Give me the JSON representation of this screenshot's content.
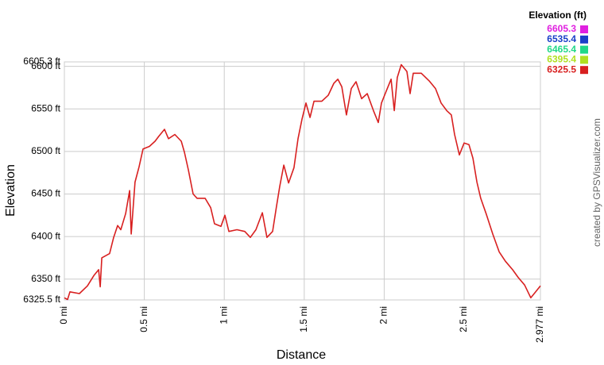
{
  "chart_data": {
    "type": "line",
    "legend_title": "Elevation (ft)",
    "y_label": "Elevation",
    "x_label": "Distance",
    "credit": "created by GPSVisualizer.com",
    "grid": true,
    "xlim": [
      0,
      2.977
    ],
    "xticks": [
      {
        "value": 0,
        "label": "0 mi"
      },
      {
        "value": 0.5,
        "label": "0.5 mi"
      },
      {
        "value": 1,
        "label": "1 mi"
      },
      {
        "value": 1.5,
        "label": "1.5 mi"
      },
      {
        "value": 2,
        "label": "2 mi"
      },
      {
        "value": 2.5,
        "label": "2.5 mi"
      },
      {
        "value": 2.977,
        "label": "2.977 mi"
      }
    ],
    "ylim": [
      6325.5,
      6605.3
    ],
    "yticks": [
      {
        "value": 6325.5,
        "label": "6325.5 ft"
      },
      {
        "value": 6350,
        "label": "6350 ft"
      },
      {
        "value": 6400,
        "label": "6400 ft"
      },
      {
        "value": 6450,
        "label": "6450 ft"
      },
      {
        "value": 6500,
        "label": "6500 ft"
      },
      {
        "value": 6550,
        "label": "6550 ft"
      },
      {
        "value": 6600,
        "label": "6600 ft"
      },
      {
        "value": 6605.3,
        "label": "6605.3 ft"
      }
    ],
    "color_scale": [
      {
        "value": 6605.3,
        "color": "#e020e0"
      },
      {
        "value": 6535.4,
        "color": "#1a40c8"
      },
      {
        "value": 6465.4,
        "color": "#20d888"
      },
      {
        "value": 6395.4,
        "color": "#b0e020"
      },
      {
        "value": 6325.5,
        "color": "#d82020"
      }
    ],
    "x": [
      0,
      0.02,
      0.035,
      0.094,
      0.144,
      0.184,
      0.214,
      0.224,
      0.234,
      0.283,
      0.308,
      0.333,
      0.353,
      0.383,
      0.408,
      0.418,
      0.442,
      0.467,
      0.492,
      0.532,
      0.567,
      0.591,
      0.626,
      0.651,
      0.691,
      0.731,
      0.751,
      0.776,
      0.805,
      0.83,
      0.88,
      0.915,
      0.939,
      0.979,
      1.004,
      1.029,
      1.079,
      1.128,
      1.163,
      1.198,
      1.238,
      1.267,
      1.302,
      1.327,
      1.347,
      1.372,
      1.402,
      1.436,
      1.461,
      1.486,
      1.511,
      1.536,
      1.561,
      1.61,
      1.65,
      1.685,
      1.71,
      1.735,
      1.764,
      1.794,
      1.824,
      1.859,
      1.894,
      1.933,
      1.963,
      1.983,
      2.013,
      2.043,
      2.063,
      2.082,
      2.107,
      2.142,
      2.162,
      2.182,
      2.232,
      2.281,
      2.321,
      2.356,
      2.391,
      2.42,
      2.44,
      2.47,
      2.5,
      2.53,
      2.555,
      2.58,
      2.604,
      2.639,
      2.679,
      2.719,
      2.758,
      2.803,
      2.838,
      2.878,
      2.917,
      2.947,
      2.977
    ],
    "values": [
      6328,
      6326,
      6335,
      6333,
      6342,
      6354,
      6361,
      6341,
      6375,
      6380,
      6399,
      6413,
      6408,
      6427,
      6454,
      6403,
      6464,
      6482,
      6503,
      6506,
      6512,
      6518,
      6526,
      6515,
      6520,
      6512,
      6499,
      6478,
      6450,
      6445,
      6445,
      6434,
      6415,
      6412,
      6425,
      6406,
      6408,
      6406,
      6399,
      6408,
      6428,
      6399,
      6406,
      6436,
      6459,
      6484,
      6463,
      6481,
      6515,
      6538,
      6557,
      6540,
      6559,
      6559,
      6566,
      6580,
      6585,
      6576,
      6543,
      6574,
      6582,
      6562,
      6568,
      6548,
      6534,
      6557,
      6571,
      6585,
      6548,
      6587,
      6602,
      6594,
      6568,
      6592,
      6592,
      6583,
      6574,
      6557,
      6548,
      6543,
      6520,
      6496,
      6510,
      6508,
      6492,
      6464,
      6445,
      6426,
      6403,
      6382,
      6371,
      6361,
      6352,
      6343,
      6328,
      6335,
      6342
    ]
  }
}
